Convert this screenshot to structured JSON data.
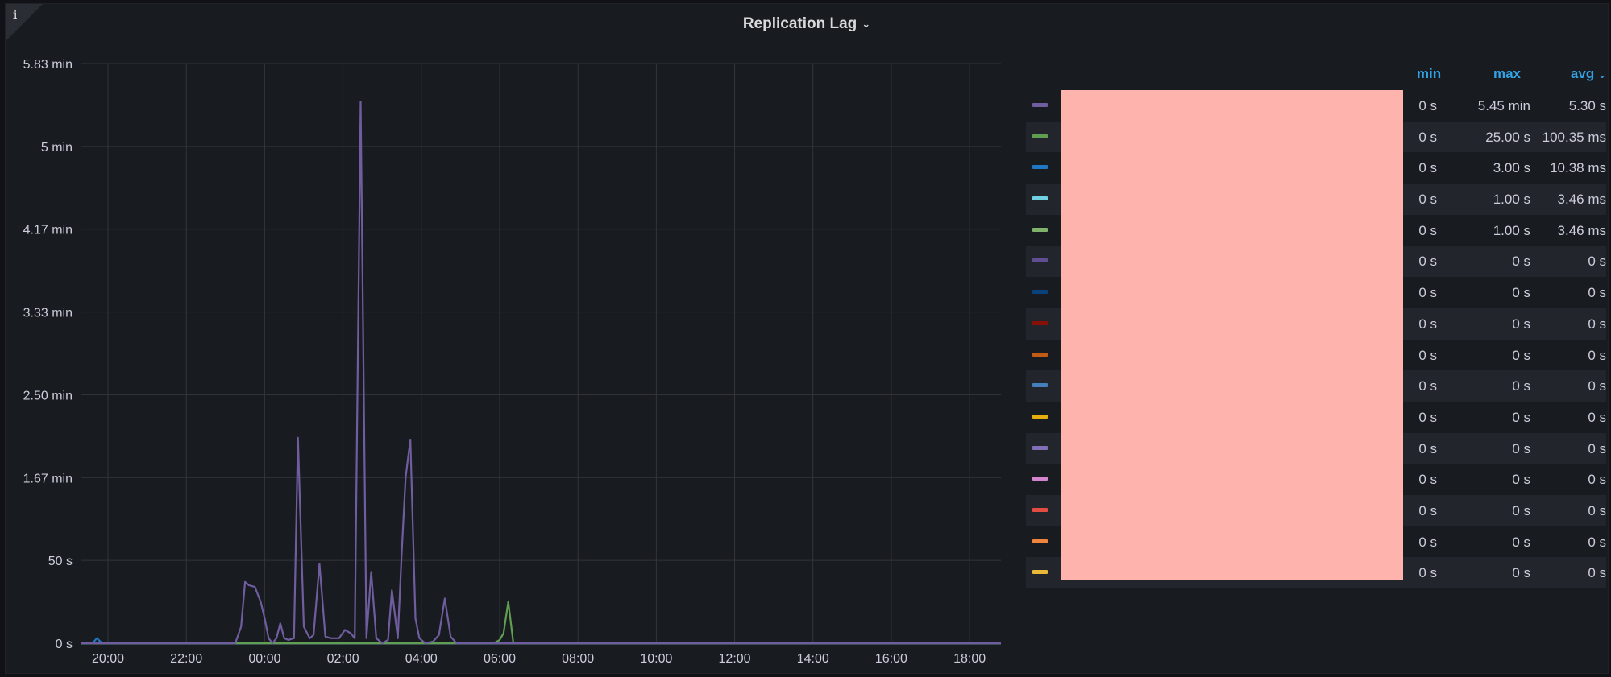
{
  "panel": {
    "title": "Replication Lag",
    "info_icon": "info-icon",
    "title_chevron": "chevron-down-icon"
  },
  "colors": {
    "background": "#181b1f",
    "grid": "#33363b",
    "redaction": "#feb3ac",
    "header": "#33a2e5"
  },
  "chart_data": {
    "type": "line",
    "title": "Replication Lag",
    "x_unit": "time of day",
    "y_unit": "seconds",
    "x_range": [
      "19:15",
      "18:45 (+1 day)"
    ],
    "ylim_seconds": [
      0,
      350
    ],
    "y_ticks": [
      {
        "value": 0,
        "label": "0 s"
      },
      {
        "value": 50,
        "label": "50 s"
      },
      {
        "value": 100,
        "label": "1.67 min"
      },
      {
        "value": 150,
        "label": "2.50 min"
      },
      {
        "value": 200,
        "label": "3.33 min"
      },
      {
        "value": 250,
        "label": "4.17 min"
      },
      {
        "value": 300,
        "label": "5 min"
      },
      {
        "value": 350,
        "label": "5.83 min"
      }
    ],
    "x_ticks": [
      "20:00",
      "22:00",
      "00:00",
      "02:00",
      "04:00",
      "06:00",
      "08:00",
      "10:00",
      "12:00",
      "14:00",
      "16:00",
      "18:00"
    ],
    "x_tick_hours": [
      20,
      22,
      24,
      26,
      28,
      30,
      32,
      34,
      36,
      38,
      40,
      42
    ],
    "grid": true,
    "legend_placement": "right",
    "series": [
      {
        "color": "#705da0",
        "min": "0 s",
        "max": "5.45 min",
        "avg": "5.30 s",
        "points": [
          [
            19.3,
            0
          ],
          [
            23.0,
            0
          ],
          [
            23.25,
            0
          ],
          [
            23.4,
            10
          ],
          [
            23.5,
            37
          ],
          [
            23.6,
            35
          ],
          [
            23.75,
            34
          ],
          [
            23.9,
            25
          ],
          [
            24.0,
            15
          ],
          [
            24.1,
            3
          ],
          [
            24.2,
            0
          ],
          [
            24.3,
            3
          ],
          [
            24.4,
            12
          ],
          [
            24.5,
            3
          ],
          [
            24.6,
            2
          ],
          [
            24.75,
            3
          ],
          [
            24.85,
            124
          ],
          [
            25.0,
            10
          ],
          [
            25.15,
            3
          ],
          [
            25.25,
            5
          ],
          [
            25.4,
            48
          ],
          [
            25.55,
            4
          ],
          [
            25.7,
            3
          ],
          [
            25.9,
            3
          ],
          [
            26.05,
            8
          ],
          [
            26.2,
            6
          ],
          [
            26.3,
            3
          ],
          [
            26.45,
            327
          ],
          [
            26.6,
            3
          ],
          [
            26.72,
            43
          ],
          [
            26.85,
            3
          ],
          [
            27.0,
            0
          ],
          [
            27.15,
            2
          ],
          [
            27.25,
            32
          ],
          [
            27.4,
            3
          ],
          [
            27.5,
            55
          ],
          [
            27.6,
            100
          ],
          [
            27.72,
            123
          ],
          [
            27.85,
            15
          ],
          [
            27.95,
            3
          ],
          [
            28.1,
            0
          ],
          [
            28.3,
            1
          ],
          [
            28.45,
            5
          ],
          [
            28.6,
            27
          ],
          [
            28.75,
            4
          ],
          [
            28.9,
            0
          ],
          [
            42.8,
            0
          ]
        ]
      },
      {
        "color": "#629e51",
        "min": "0 s",
        "max": "25.00 s",
        "avg": "100.35 ms",
        "points": [
          [
            19.3,
            0
          ],
          [
            29.85,
            0
          ],
          [
            30.0,
            2
          ],
          [
            30.1,
            6
          ],
          [
            30.22,
            25
          ],
          [
            30.35,
            0
          ],
          [
            42.8,
            0
          ]
        ]
      },
      {
        "color": "#1f78c1",
        "min": "0 s",
        "max": "3.00 s",
        "avg": "10.38 ms",
        "points": [
          [
            19.3,
            0
          ],
          [
            19.6,
            0
          ],
          [
            19.72,
            3
          ],
          [
            19.85,
            0
          ],
          [
            42.8,
            0
          ]
        ]
      },
      {
        "color": "#6ed0e0",
        "min": "0 s",
        "max": "1.00 s",
        "avg": "3.46 ms",
        "points": [
          [
            19.3,
            0
          ],
          [
            42.8,
            0
          ]
        ]
      },
      {
        "color": "#7eb26d",
        "min": "0 s",
        "max": "1.00 s",
        "avg": "3.46 ms",
        "points": [
          [
            19.3,
            0
          ],
          [
            42.8,
            0
          ]
        ]
      },
      {
        "color": "#614d93",
        "min": "0 s",
        "max": "0 s",
        "avg": "0 s",
        "points": [
          [
            19.3,
            0
          ],
          [
            42.8,
            0
          ]
        ]
      },
      {
        "color": "#0a437c",
        "min": "0 s",
        "max": "0 s",
        "avg": "0 s",
        "points": [
          [
            19.3,
            0
          ],
          [
            42.8,
            0
          ]
        ]
      },
      {
        "color": "#890f02",
        "min": "0 s",
        "max": "0 s",
        "avg": "0 s",
        "points": [
          [
            19.3,
            0
          ],
          [
            42.8,
            0
          ]
        ]
      },
      {
        "color": "#c15c17",
        "min": "0 s",
        "max": "0 s",
        "avg": "0 s",
        "points": [
          [
            19.3,
            0
          ],
          [
            42.8,
            0
          ]
        ]
      },
      {
        "color": "#447ebc",
        "min": "0 s",
        "max": "0 s",
        "avg": "0 s",
        "points": [
          [
            19.3,
            0
          ],
          [
            42.8,
            0
          ]
        ]
      },
      {
        "color": "#e5ac0e",
        "min": "0 s",
        "max": "0 s",
        "avg": "0 s",
        "points": [
          [
            19.3,
            0
          ],
          [
            42.8,
            0
          ]
        ]
      },
      {
        "color": "#806eb7",
        "min": "0 s",
        "max": "0 s",
        "avg": "0 s",
        "points": [
          [
            19.3,
            0
          ],
          [
            42.8,
            0
          ]
        ]
      },
      {
        "color": "#d683ce",
        "min": "0 s",
        "max": "0 s",
        "avg": "0 s",
        "points": [
          [
            19.3,
            0
          ],
          [
            42.8,
            0
          ]
        ]
      },
      {
        "color": "#e24d42",
        "min": "0 s",
        "max": "0 s",
        "avg": "0 s",
        "points": [
          [
            19.3,
            0
          ],
          [
            42.8,
            0
          ]
        ]
      },
      {
        "color": "#ef843c",
        "min": "0 s",
        "max": "0 s",
        "avg": "0 s",
        "points": [
          [
            19.3,
            0
          ],
          [
            42.8,
            0
          ]
        ]
      },
      {
        "color": "#eab839",
        "min": "0 s",
        "max": "0 s",
        "avg": "0 s",
        "points": [
          [
            19.3,
            0
          ],
          [
            42.8,
            0
          ]
        ]
      }
    ]
  },
  "legend": {
    "columns": {
      "min": "min",
      "max": "max",
      "avg": "avg"
    },
    "sort_icon": "chevron-down-icon"
  }
}
